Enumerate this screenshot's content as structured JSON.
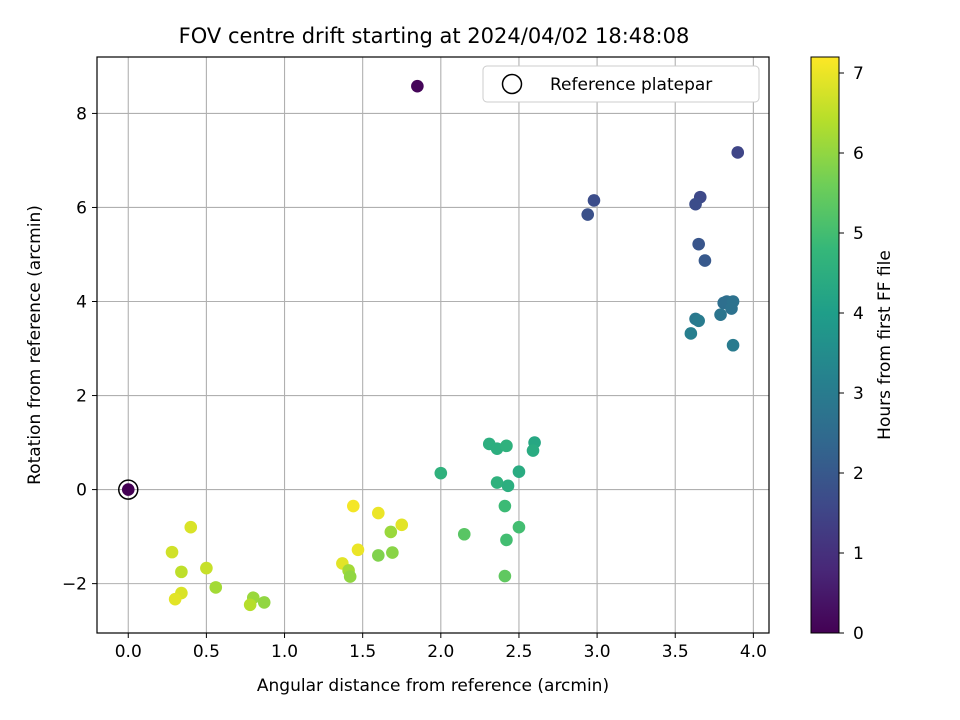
{
  "chart_data": {
    "type": "scatter",
    "title": "FOV centre drift starting at 2024/04/02 18:48:08",
    "xlabel": "Angular distance from reference (arcmin)",
    "ylabel": "Rotation from reference (arcmin)",
    "xlim": [
      -0.2,
      4.1
    ],
    "ylim": [
      -3.05,
      9.2
    ],
    "xticks": [
      0.0,
      0.5,
      1.0,
      1.5,
      2.0,
      2.5,
      3.0,
      3.5,
      4.0
    ],
    "xtick_labels": [
      "0.0",
      "0.5",
      "1.0",
      "1.5",
      "2.0",
      "2.5",
      "3.0",
      "3.5",
      "4.0"
    ],
    "yticks": [
      -2,
      0,
      2,
      4,
      6,
      8
    ],
    "ytick_labels": [
      "−2",
      "0",
      "2",
      "4",
      "6",
      "8"
    ],
    "grid": true,
    "legend": {
      "label": "Reference platepar",
      "placement": "top-right"
    },
    "reference_point": {
      "x": 0.0,
      "y": 0.0
    },
    "colorbar": {
      "label": "Hours from first FF file",
      "colormap": "viridis",
      "range": [
        0,
        7.2
      ],
      "ticks": [
        0,
        1,
        2,
        3,
        4,
        5,
        6,
        7
      ],
      "tick_labels": [
        "0",
        "1",
        "2",
        "3",
        "4",
        "5",
        "6",
        "7"
      ]
    },
    "colormap_stops": [
      "#440154",
      "#482878",
      "#3e4989",
      "#31688e",
      "#26828e",
      "#1f9e89",
      "#35b779",
      "#6ece58",
      "#b5de2b",
      "#fde725"
    ],
    "points": [
      {
        "x": 0.0,
        "y": 0.0,
        "h": 0.0
      },
      {
        "x": 1.85,
        "y": 8.58,
        "h": 0.1
      },
      {
        "x": 3.9,
        "y": 7.17,
        "h": 1.5
      },
      {
        "x": 2.98,
        "y": 6.15,
        "h": 1.7
      },
      {
        "x": 2.94,
        "y": 5.85,
        "h": 1.8
      },
      {
        "x": 3.66,
        "y": 6.22,
        "h": 1.6
      },
      {
        "x": 3.63,
        "y": 6.07,
        "h": 1.7
      },
      {
        "x": 3.65,
        "y": 5.22,
        "h": 1.9
      },
      {
        "x": 3.69,
        "y": 4.87,
        "h": 2.0
      },
      {
        "x": 3.81,
        "y": 3.97,
        "h": 2.6
      },
      {
        "x": 3.83,
        "y": 4.0,
        "h": 2.6
      },
      {
        "x": 3.87,
        "y": 4.0,
        "h": 2.7
      },
      {
        "x": 3.86,
        "y": 3.85,
        "h": 2.7
      },
      {
        "x": 3.79,
        "y": 3.72,
        "h": 2.8
      },
      {
        "x": 3.63,
        "y": 3.63,
        "h": 2.9
      },
      {
        "x": 3.65,
        "y": 3.59,
        "h": 3.0
      },
      {
        "x": 3.6,
        "y": 3.32,
        "h": 3.1
      },
      {
        "x": 3.87,
        "y": 3.07,
        "h": 3.0
      },
      {
        "x": 2.6,
        "y": 1.0,
        "h": 4.3
      },
      {
        "x": 2.59,
        "y": 0.83,
        "h": 4.4
      },
      {
        "x": 2.31,
        "y": 0.97,
        "h": 4.5
      },
      {
        "x": 2.36,
        "y": 0.87,
        "h": 4.5
      },
      {
        "x": 2.42,
        "y": 0.93,
        "h": 4.6
      },
      {
        "x": 2.0,
        "y": 0.35,
        "h": 4.6
      },
      {
        "x": 2.5,
        "y": 0.38,
        "h": 4.4
      },
      {
        "x": 2.36,
        "y": 0.15,
        "h": 4.6
      },
      {
        "x": 2.43,
        "y": 0.08,
        "h": 4.5
      },
      {
        "x": 2.41,
        "y": -0.35,
        "h": 4.9
      },
      {
        "x": 2.5,
        "y": -0.8,
        "h": 5.0
      },
      {
        "x": 2.42,
        "y": -1.07,
        "h": 5.0
      },
      {
        "x": 2.15,
        "y": -0.95,
        "h": 5.3
      },
      {
        "x": 2.41,
        "y": -1.84,
        "h": 5.4
      },
      {
        "x": 1.44,
        "y": -0.35,
        "h": 7.1
      },
      {
        "x": 1.6,
        "y": -0.5,
        "h": 7.0
      },
      {
        "x": 1.75,
        "y": -0.75,
        "h": 6.9
      },
      {
        "x": 1.68,
        "y": -0.9,
        "h": 6.1
      },
      {
        "x": 1.47,
        "y": -1.28,
        "h": 7.0
      },
      {
        "x": 1.6,
        "y": -1.4,
        "h": 5.8
      },
      {
        "x": 1.69,
        "y": -1.34,
        "h": 5.9
      },
      {
        "x": 1.37,
        "y": -1.57,
        "h": 6.9
      },
      {
        "x": 1.41,
        "y": -1.72,
        "h": 6.2
      },
      {
        "x": 1.42,
        "y": -1.85,
        "h": 6.0
      },
      {
        "x": 0.4,
        "y": -0.8,
        "h": 6.8
      },
      {
        "x": 0.28,
        "y": -1.33,
        "h": 6.7
      },
      {
        "x": 0.34,
        "y": -1.75,
        "h": 6.5
      },
      {
        "x": 0.5,
        "y": -1.67,
        "h": 6.6
      },
      {
        "x": 0.56,
        "y": -2.08,
        "h": 6.2
      },
      {
        "x": 0.34,
        "y": -2.2,
        "h": 6.8
      },
      {
        "x": 0.3,
        "y": -2.33,
        "h": 6.9
      },
      {
        "x": 0.8,
        "y": -2.3,
        "h": 6.1
      },
      {
        "x": 0.78,
        "y": -2.45,
        "h": 6.4
      },
      {
        "x": 0.87,
        "y": -2.4,
        "h": 6.0
      }
    ]
  }
}
